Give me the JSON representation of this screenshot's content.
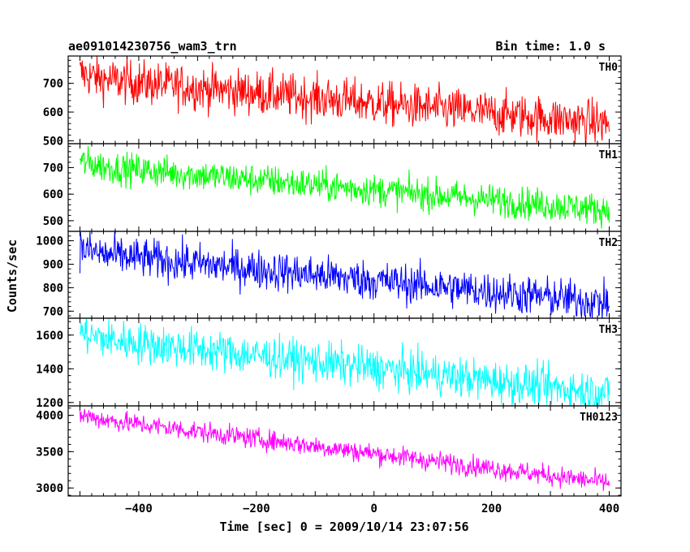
{
  "chart_data": {
    "type": "line",
    "title_left": "ae091014230756_wam3_trn",
    "title_right": "Bin time: 1.0 s",
    "xlabel": "Time [sec] 0 = 2009/10/14 23:07:56",
    "ylabel": "Counts/sec",
    "xlim": [
      -520,
      420
    ],
    "x_ticks": [
      -400,
      -200,
      0,
      200,
      400
    ],
    "x_range": [
      -500,
      400
    ],
    "panels": [
      {
        "name": "TH0",
        "color": "#ff0000",
        "ylim": [
          490,
          795
        ],
        "y_ticks": [
          500,
          600,
          700
        ],
        "start": 720,
        "end": 560,
        "noise": 38
      },
      {
        "name": "TH1",
        "color": "#00ff00",
        "ylim": [
          460,
          790
        ],
        "y_ticks": [
          500,
          600,
          700
        ],
        "start": 710,
        "end": 540,
        "noise": 30
      },
      {
        "name": "TH2",
        "color": "#0000ff",
        "ylim": [
          670,
          1040
        ],
        "y_ticks": [
          700,
          800,
          900,
          1000
        ],
        "start": 950,
        "end": 735,
        "noise": 42
      },
      {
        "name": "TH3",
        "color": "#00ffff",
        "ylim": [
          1180,
          1700
        ],
        "y_ticks": [
          1200,
          1400,
          1600
        ],
        "start": 1590,
        "end": 1255,
        "noise": 60
      },
      {
        "name": "TH0123",
        "color": "#ff00ff",
        "ylim": [
          2890,
          4130
        ],
        "y_ticks": [
          3000,
          3500,
          4000
        ],
        "start": 3980,
        "end": 3070,
        "noise": 70
      }
    ]
  }
}
